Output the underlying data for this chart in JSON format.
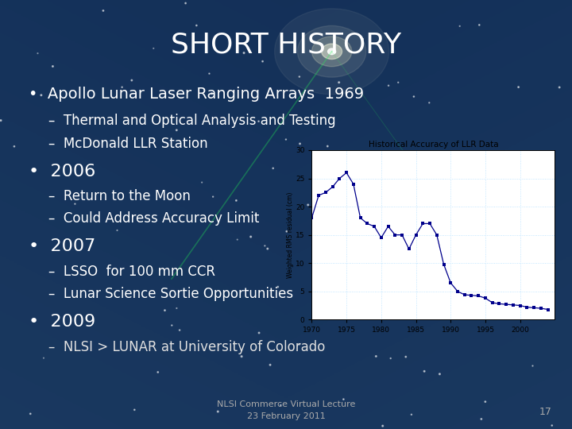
{
  "title": "SHORT HISTORY",
  "bullet1": "Apollo Lunar Laser Ranging Arrays  1969",
  "sub1a": "–  Thermal and Optical Analysis and Testing",
  "sub1b": "–  McDonald LLR Station",
  "bullet2": "2006",
  "sub2a": "–  Return to the Moon",
  "sub2b": "–  Could Address Accuracy Limit",
  "bullet3": "2007",
  "sub3a": "–  LSSO  for 100 mm CCR",
  "sub3b": "–  Lunar Science Sortie Opportunities",
  "bullet4": "2009",
  "sub4a": "–  NLSI > LUNAR at University of Colorado",
  "footer1": "NLSI Commerce Virtual Lecture",
  "footer2": "23 February 2011",
  "page_num": "17",
  "chart_title": "Historical Accuracy of LLR Data",
  "chart_ylabel": "Weighted RMS residual (cm)",
  "chart_xlim": [
    1970,
    2005
  ],
  "chart_ylim": [
    0,
    30
  ],
  "chart_xticks": [
    1970,
    1975,
    1980,
    1985,
    1990,
    1995,
    2000
  ],
  "chart_yticks": [
    0,
    5,
    10,
    15,
    20,
    25,
    30
  ],
  "chart_x": [
    1970,
    1971,
    1972,
    1973,
    1974,
    1975,
    1976,
    1977,
    1978,
    1979,
    1980,
    1981,
    1982,
    1983,
    1984,
    1985,
    1986,
    1987,
    1988,
    1989,
    1990,
    1991,
    1992,
    1993,
    1994,
    1995,
    1996,
    1997,
    1998,
    1999,
    2000,
    2001,
    2002,
    2003,
    2004
  ],
  "chart_y": [
    18,
    22,
    22.5,
    23.5,
    25,
    26,
    24,
    18,
    17,
    16.5,
    14.5,
    16.5,
    15,
    15,
    12.5,
    15,
    17,
    17,
    15,
    9.8,
    6.5,
    5,
    4.4,
    4.3,
    4.2,
    3.8,
    3.0,
    2.8,
    2.7,
    2.6,
    2.5,
    2.2,
    2.1,
    2.0,
    1.8
  ],
  "chart_color": "#00008B",
  "bg_dark": "#1c1c2e",
  "bg_mid": "#2a2a3e",
  "text_color": "#ffffff",
  "sub_color": "#e0e0e0",
  "footer_color": "#aaaaaa",
  "title_fontsize": 26,
  "bullet1_fontsize": 14,
  "bullet_fontsize": 16,
  "sub_fontsize": 12,
  "footer_fontsize": 8
}
